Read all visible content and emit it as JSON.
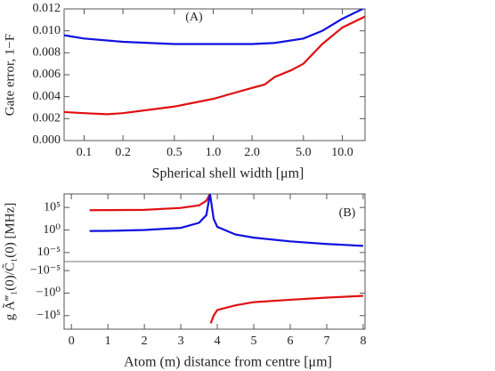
{
  "chart_data": [
    {
      "type": "line",
      "annotation": "(A)",
      "xlabel": "Spherical shell width [μm]",
      "ylabel": "Gate error, 1−F",
      "xscale": "log",
      "xlim": [
        0.07,
        15
      ],
      "xticks": [
        0.1,
        0.2,
        0.5,
        {
          "value": 1,
          "label": "1.0"
        },
        {
          "value": 2,
          "label": "2.0"
        },
        {
          "value": 5,
          "label": "5.0"
        },
        {
          "value": 10,
          "label": "10.0"
        }
      ],
      "ylim": [
        0,
        0.012
      ],
      "yticks": [
        {
          "value": 0,
          "label": "0.000"
        },
        {
          "value": 0.002,
          "label": "0.002"
        },
        {
          "value": 0.004,
          "label": "0.004"
        },
        {
          "value": 0.006,
          "label": "0.006"
        },
        {
          "value": 0.008,
          "label": "0.008"
        },
        {
          "value": 0.01,
          "label": "0.010"
        },
        {
          "value": 0.012,
          "label": "0.012"
        }
      ],
      "series": [
        {
          "color": "#1010e0",
          "x": [
            0.07,
            0.1,
            0.2,
            0.5,
            1,
            2,
            3,
            5,
            7,
            10,
            15
          ],
          "values": [
            0.0096,
            0.0093,
            0.009,
            0.0088,
            0.0088,
            0.0088,
            0.0089,
            0.0093,
            0.01,
            0.0111,
            0.0121
          ]
        },
        {
          "color": "#e01010",
          "x": [
            0.07,
            0.1,
            0.15,
            0.2,
            0.5,
            1,
            2,
            2.5,
            3,
            4,
            5,
            7,
            10,
            15
          ],
          "values": [
            0.0026,
            0.0025,
            0.0024,
            0.0025,
            0.0031,
            0.0038,
            0.0048,
            0.0051,
            0.0058,
            0.0064,
            0.007,
            0.0088,
            0.0103,
            0.0113
          ]
        }
      ]
    },
    {
      "type": "line",
      "annotation": "(B)",
      "xlabel": "Atom (m) distance from centre [μm]",
      "ylabel": "g Ã‴₁(0)/C̃₁(0) [MHz]",
      "xlim": [
        -0.2,
        8.05
      ],
      "xticks": [
        0,
        1,
        2,
        3,
        4,
        5,
        6,
        7,
        8
      ],
      "yscale": "symlog",
      "linthresh": 1e-07,
      "ylim": [
        -100000000,
        100000000
      ],
      "yticks": [
        {
          "value": 100000,
          "label": "10⁵"
        },
        {
          "value": 1,
          "label": "10⁰"
        },
        {
          "value": 1e-05,
          "label": "10⁻⁵"
        },
        {
          "value": -1e-05,
          "label": "−10⁻⁵"
        },
        {
          "value": -1,
          "label": "−10⁰"
        },
        {
          "value": -100000,
          "label": "−10⁵"
        }
      ],
      "series": [
        {
          "color": "#e01010",
          "x": [
            0.5,
            1,
            2,
            3,
            3.5,
            3.7,
            3.8,
            3.8,
            3.82,
            3.9,
            4,
            4.5,
            5,
            6,
            7,
            8
          ],
          "values": [
            25000,
            26000,
            30000,
            80000,
            300000,
            3000000,
            100000000,
            null,
            -5000000,
            -100000,
            -5600,
            -500,
            -100,
            -30,
            -10,
            -4
          ]
        },
        {
          "color": "#1010e0",
          "x": [
            0.5,
            1,
            2,
            3,
            3.5,
            3.7,
            3.8,
            3.9,
            4,
            4.5,
            5,
            6,
            7,
            8
          ],
          "values": [
            0.6,
            0.65,
            1,
            3,
            40,
            2000,
            100000000,
            300,
            5,
            0.1,
            0.02,
            0.003,
            0.0008,
            0.0003
          ]
        }
      ]
    }
  ]
}
